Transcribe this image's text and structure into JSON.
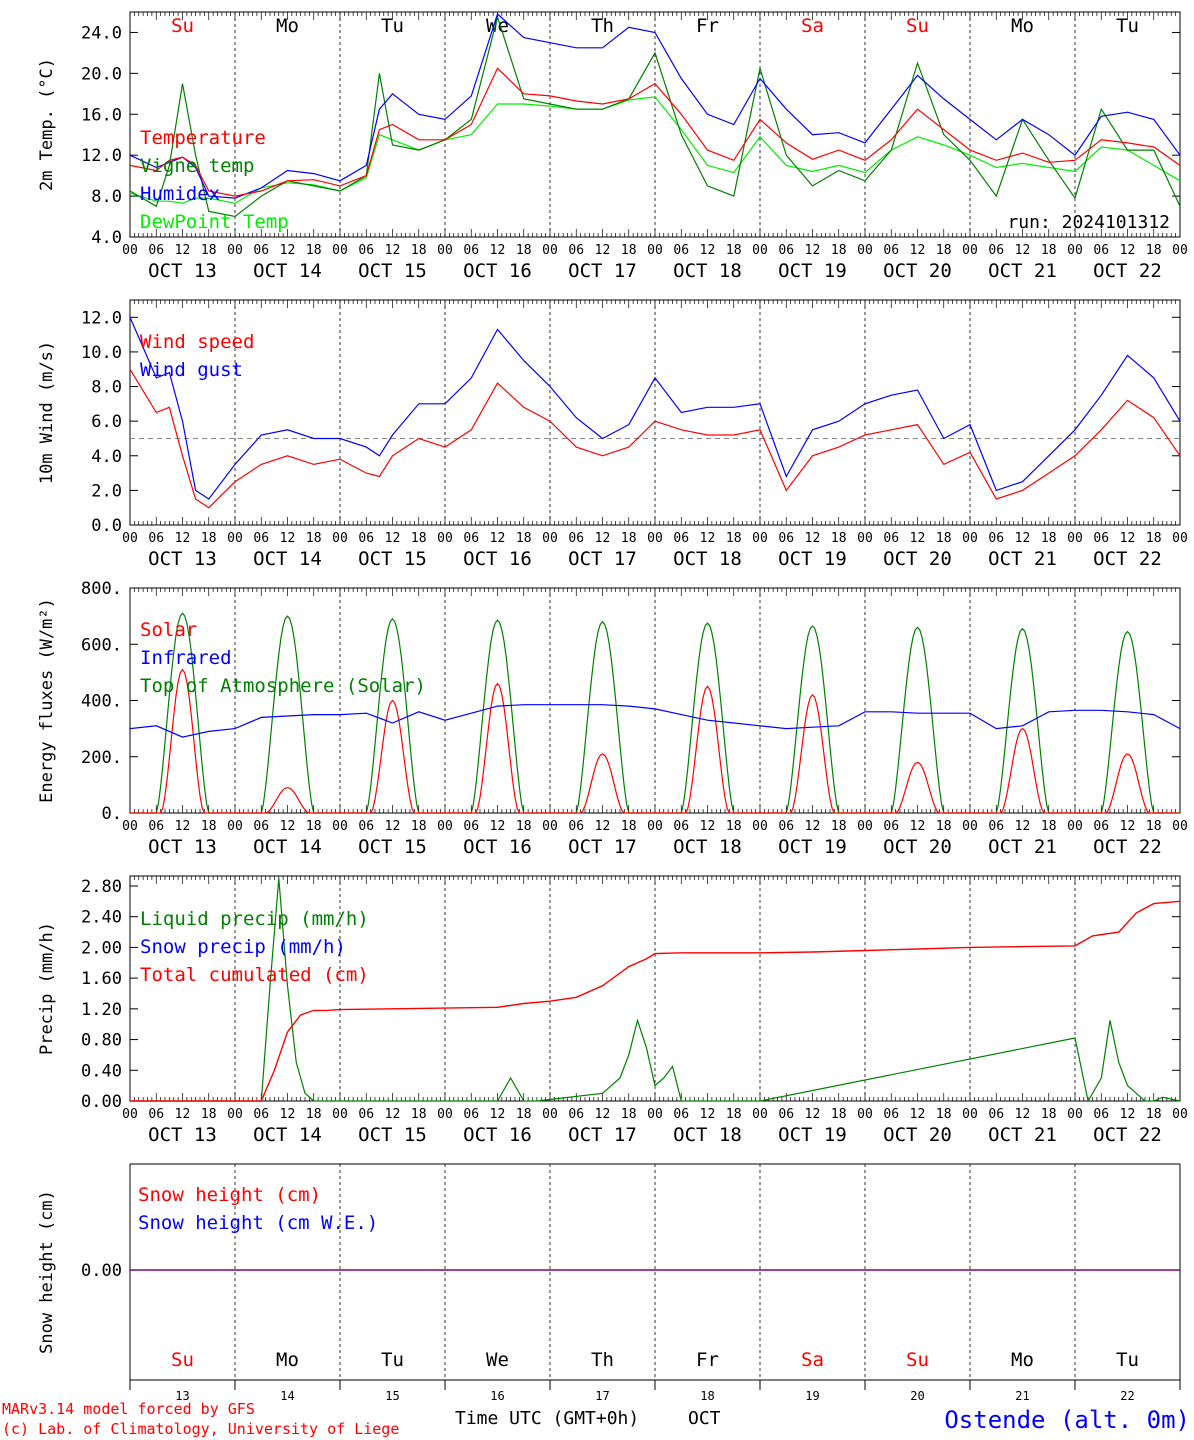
{
  "colors": {
    "red": "#ff0000",
    "darkgreen": "#008000",
    "blue": "#0000ff",
    "lightgreen": "#00ee00",
    "purple": "#7f007f",
    "grey": "#888888"
  },
  "days": {
    "labels": [
      "Su",
      "Mo",
      "Tu",
      "We",
      "Th",
      "Fr",
      "Sa",
      "Su",
      "Mo",
      "Tu"
    ],
    "weekend": [
      true,
      false,
      false,
      false,
      false,
      false,
      true,
      true,
      false,
      false
    ],
    "dates": [
      "OCT 13",
      "OCT 14",
      "OCT 15",
      "OCT 16",
      "OCT 17",
      "OCT 18",
      "OCT 19",
      "OCT 20",
      "OCT 21",
      "OCT 22"
    ],
    "day_numbers": [
      "13",
      "14",
      "15",
      "16",
      "17",
      "18",
      "19",
      "20",
      "21",
      "22"
    ],
    "hour_ticks": [
      "00",
      "06",
      "12",
      "18"
    ],
    "end_tick": "00"
  },
  "run_label": "run: 2024101312",
  "footer": {
    "model": "MARv3.14 model forced by GFS",
    "lab": "(c) Lab. of Climatology, University of Liege",
    "xlabel": "Time UTC (GMT+0h)",
    "month": "OCT",
    "station": "Ostende (alt. 0m)"
  },
  "chart_data": [
    {
      "type": "line",
      "ylabel": "2m Temp. (°C)",
      "ylim": [
        4,
        26
      ],
      "yticks": [
        "4.0",
        "8.0",
        "12.0",
        "16.0",
        "20.0",
        "24.0"
      ],
      "x_hours": [
        0,
        6,
        9,
        12,
        15,
        18,
        24,
        30,
        36,
        42,
        48,
        54,
        57,
        60,
        66,
        72,
        78,
        84,
        90,
        96,
        102,
        108,
        114,
        120,
        126,
        132,
        138,
        144,
        150,
        156,
        162,
        168,
        174,
        180,
        186,
        192,
        198,
        204,
        210,
        216,
        222,
        228,
        234,
        240
      ],
      "series": [
        {
          "name": "Temperature",
          "color": "red",
          "values": [
            11,
            10.5,
            11.5,
            11.8,
            11,
            8.5,
            8,
            8.5,
            9.5,
            9.6,
            9,
            10,
            14.5,
            15,
            13.5,
            13.5,
            15,
            20.5,
            18,
            17.8,
            17.3,
            17,
            17.5,
            19,
            16,
            12.5,
            11.5,
            15.5,
            13.2,
            11.6,
            12.5,
            11.5,
            13.5,
            16.5,
            14.5,
            12.5,
            11.5,
            12.2,
            11.3,
            11.5,
            13.5,
            13.2,
            12.8,
            11
          ]
        },
        {
          "name": "Vigne temp",
          "color": "darkgreen",
          "values": [
            8.5,
            7,
            11,
            19,
            12,
            6.5,
            6,
            8,
            9.5,
            9,
            8.5,
            10,
            20,
            13,
            12.5,
            13.5,
            15.5,
            25.5,
            17.5,
            17,
            16.5,
            16.5,
            17.5,
            22,
            14,
            9,
            8,
            20.5,
            12,
            9,
            10.5,
            9.5,
            12.5,
            21,
            14,
            11.5,
            8,
            15.5,
            11.5,
            7.8,
            16.5,
            12.5,
            12.5,
            7
          ]
        },
        {
          "name": "Humidex",
          "color": "blue",
          "values": [
            12,
            10.8,
            11.3,
            11.8,
            10.8,
            8,
            7.8,
            8.8,
            10.5,
            10.2,
            9.5,
            11,
            16.5,
            18,
            16,
            15.5,
            17.8,
            25.8,
            23.5,
            23,
            22.5,
            22.5,
            24.5,
            24,
            19.5,
            16,
            15,
            19.5,
            16.5,
            14,
            14.2,
            13.2,
            16.5,
            19.8,
            17.5,
            15.5,
            13.5,
            15.5,
            14,
            12,
            15.8,
            16.2,
            15.5,
            12
          ]
        },
        {
          "name": "DewPoint Temp",
          "color": "lightgreen",
          "values": [
            8.3,
            7.5,
            7.5,
            7.3,
            7.8,
            7.8,
            7.3,
            8.8,
            9.3,
            9.1,
            8.5,
            9.8,
            14,
            13.5,
            12.5,
            13.5,
            14,
            17,
            17,
            16.8,
            16.5,
            16.5,
            17.4,
            17.7,
            14.5,
            11,
            10.3,
            13.8,
            11,
            10.4,
            11,
            10.3,
            12.5,
            13.8,
            13,
            12,
            10.8,
            11.2,
            10.8,
            10.4,
            12.8,
            12.5,
            11,
            9.5
          ]
        }
      ]
    },
    {
      "type": "line",
      "ylabel": "10m Wind (m/s)",
      "ylim": [
        0,
        13
      ],
      "yticks": [
        "0.0",
        "2.0",
        "4.0",
        "6.0",
        "8.0",
        "10.0",
        "12.0"
      ],
      "reference_line": 5,
      "x_hours": [
        0,
        6,
        9,
        12,
        15,
        18,
        24,
        30,
        36,
        42,
        48,
        54,
        57,
        60,
        66,
        72,
        78,
        84,
        90,
        96,
        102,
        108,
        114,
        120,
        126,
        132,
        138,
        144,
        150,
        156,
        162,
        168,
        174,
        180,
        186,
        192,
        198,
        204,
        210,
        216,
        222,
        228,
        234,
        240
      ],
      "series": [
        {
          "name": "Wind speed",
          "color": "red",
          "values": [
            9,
            6.5,
            6.8,
            4,
            1.5,
            1,
            2.5,
            3.5,
            4,
            3.5,
            3.8,
            3,
            2.8,
            4,
            5,
            4.5,
            5.5,
            8.2,
            6.8,
            6,
            4.5,
            4,
            4.5,
            6,
            5.5,
            5.2,
            5.2,
            5.5,
            2,
            4,
            4.5,
            5.2,
            5.5,
            5.8,
            3.5,
            4.2,
            1.5,
            2,
            3,
            4,
            5.5,
            7.2,
            6.2,
            4
          ]
        },
        {
          "name": "Wind gust",
          "color": "blue",
          "values": [
            12,
            8.5,
            8.8,
            6,
            2,
            1.5,
            3.5,
            5.2,
            5.5,
            5,
            5,
            4.5,
            4,
            5.2,
            7,
            7,
            8.5,
            11.3,
            9.5,
            8,
            6.2,
            5,
            5.8,
            8.5,
            6.5,
            6.8,
            6.8,
            7,
            2.8,
            5.5,
            6,
            7,
            7.5,
            7.8,
            5,
            5.8,
            2,
            2.5,
            4,
            5.5,
            7.5,
            9.8,
            8.5,
            6
          ]
        }
      ]
    },
    {
      "type": "line",
      "ylabel": "Energy fluxes (W/m²)",
      "ylim": [
        0,
        800
      ],
      "yticks": [
        "0.",
        "200.",
        "400.",
        "600.",
        "800."
      ],
      "series": [
        {
          "name": "Solar",
          "color": "red",
          "peaks": [
            510,
            90,
            400,
            460,
            210,
            450,
            420,
            180,
            300,
            210
          ]
        },
        {
          "name": "Infrared",
          "color": "blue",
          "x_hours": [
            0,
            6,
            12,
            18,
            24,
            30,
            36,
            42,
            48,
            54,
            60,
            66,
            72,
            78,
            84,
            90,
            96,
            102,
            108,
            114,
            120,
            126,
            132,
            138,
            144,
            150,
            156,
            162,
            168,
            174,
            180,
            186,
            192,
            198,
            204,
            210,
            216,
            222,
            228,
            234,
            240
          ],
          "values": [
            300,
            310,
            270,
            290,
            300,
            340,
            345,
            350,
            350,
            355,
            320,
            360,
            330,
            355,
            380,
            385,
            385,
            385,
            385,
            380,
            370,
            350,
            330,
            320,
            310,
            300,
            305,
            310,
            360,
            360,
            355,
            355,
            355,
            300,
            310,
            360,
            365,
            365,
            360,
            350,
            300
          ]
        },
        {
          "name": "Top of Atmosphere (Solar)",
          "color": "darkgreen",
          "peaks": [
            710,
            700,
            690,
            685,
            680,
            675,
            665,
            660,
            655,
            645
          ]
        }
      ]
    },
    {
      "type": "line",
      "ylabel": "Precip (mm/h)",
      "ylim": [
        0,
        2.93
      ],
      "yticks": [
        "0.00",
        "0.40",
        "0.80",
        "1.20",
        "1.60",
        "2.00",
        "2.40",
        "2.80"
      ],
      "series": [
        {
          "name": "Liquid precip (mm/h)",
          "color": "darkgreen",
          "x_hours": [
            0,
            30,
            32,
            34,
            36,
            38,
            40,
            42,
            44,
            46,
            48,
            84,
            87,
            90,
            93,
            108,
            112,
            114,
            116,
            118,
            120,
            122,
            124,
            126,
            129,
            132,
            135,
            138,
            141,
            144,
            216,
            219,
            222,
            224,
            226,
            228,
            230,
            232,
            234,
            236,
            240
          ],
          "values": [
            0,
            0,
            1.5,
            2.9,
            1.5,
            0.5,
            0.1,
            0,
            0,
            0,
            0,
            0,
            0.3,
            0,
            0,
            0.1,
            0.3,
            0.6,
            1.05,
            0.7,
            0.2,
            0.3,
            0.45,
            0,
            0,
            0,
            0,
            0,
            0,
            0,
            0.82,
            0,
            0.3,
            1.05,
            0.5,
            0.2,
            0.1,
            0,
            0,
            0.05,
            0
          ]
        },
        {
          "name": "Snow precip (mm/h)",
          "color": "blue",
          "values": [
            0
          ]
        },
        {
          "name": "Total cumulated (cm)",
          "color": "red",
          "x_hours": [
            0,
            30,
            33,
            36,
            39,
            42,
            45,
            48,
            60,
            72,
            84,
            90,
            96,
            102,
            108,
            114,
            118,
            120,
            126,
            130,
            144,
            156,
            168,
            180,
            192,
            204,
            216,
            220,
            226,
            230,
            234,
            240
          ],
          "values": [
            0,
            0,
            0.4,
            0.9,
            1.12,
            1.18,
            1.18,
            1.19,
            1.2,
            1.21,
            1.22,
            1.27,
            1.3,
            1.35,
            1.5,
            1.75,
            1.85,
            1.92,
            1.93,
            1.93,
            1.93,
            1.94,
            1.96,
            1.98,
            2.0,
            2.01,
            2.02,
            2.15,
            2.2,
            2.45,
            2.57,
            2.6
          ]
        }
      ]
    },
    {
      "type": "line",
      "ylabel": "Snow height (cm)",
      "ytick": "0.00",
      "series": [
        {
          "name": "Snow height (cm)",
          "color": "red",
          "values": [
            0
          ]
        },
        {
          "name": "Snow height (cm W.E.)",
          "color": "blue",
          "values": [
            0
          ]
        }
      ]
    }
  ]
}
